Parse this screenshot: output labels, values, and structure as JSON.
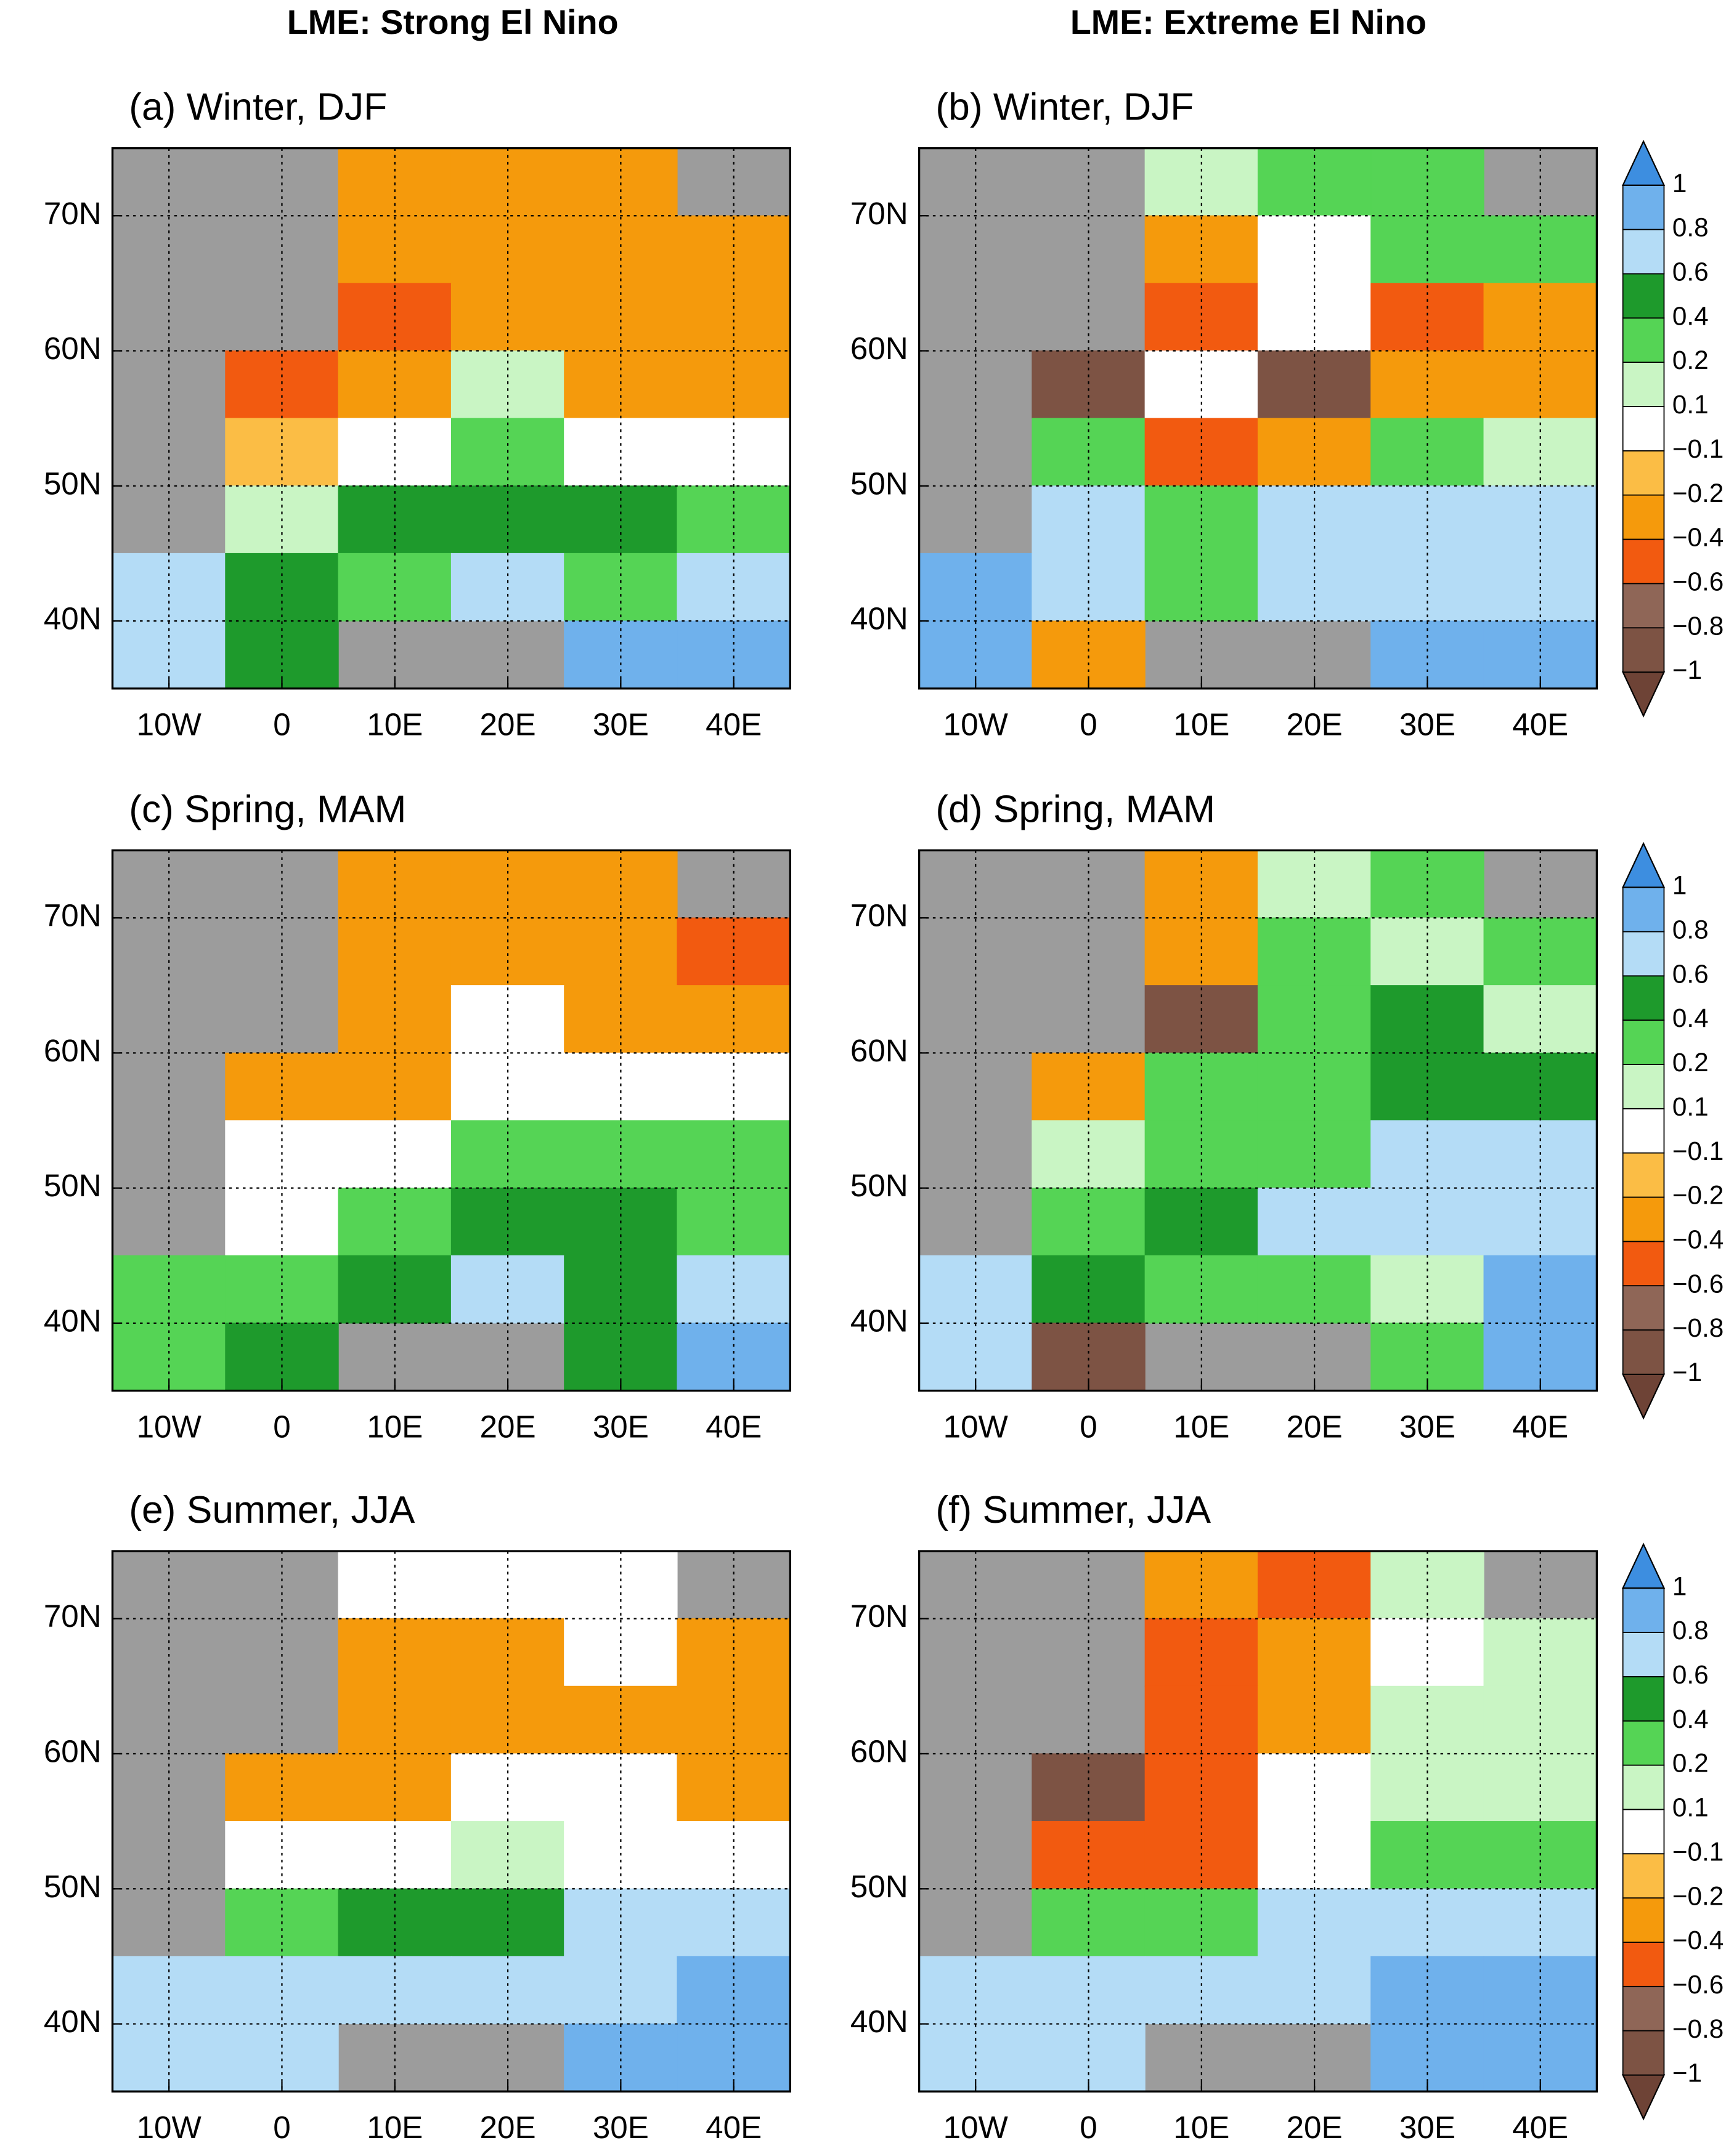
{
  "column_titles": [
    "LME: Strong El Nino",
    "LME: Extreme El Nino"
  ],
  "colorbar": {
    "ticks": [
      {
        "value": -1,
        "label": "−1"
      },
      {
        "value": -0.8,
        "label": "−0.8"
      },
      {
        "value": -0.6,
        "label": "−0.6"
      },
      {
        "value": -0.4,
        "label": "−0.4"
      },
      {
        "value": -0.2,
        "label": "−0.2"
      },
      {
        "value": -0.1,
        "label": "−0.1"
      },
      0.1,
      0.2,
      0.4,
      0.6,
      0.8,
      1
    ],
    "colors": [
      "#6e4336",
      "#7d5344",
      "#8f6657",
      "#f25a10",
      "#f59a0c",
      "#fbbd45",
      "#ffffff",
      "#c9f5c4",
      "#55d455",
      "#1e9a2c",
      "#b4dcf6",
      "#6fb1ec",
      "#3d8ee0"
    ]
  },
  "chart_data": [
    {
      "type": "map",
      "title": "(a) Winter, DJF",
      "colorbar": false,
      "grid": true,
      "xlim": [
        -15,
        45
      ],
      "ylim": [
        35,
        75
      ],
      "xticks": [
        {
          "value": -10,
          "label": "10W"
        },
        0,
        {
          "value": 10,
          "label": "10E"
        },
        {
          "value": 20,
          "label": "20E"
        },
        {
          "value": 30,
          "label": "30E"
        },
        {
          "value": 40,
          "label": "40E"
        }
      ],
      "yticks": [
        {
          "value": 40,
          "label": "40N"
        },
        {
          "value": 50,
          "label": "50N"
        },
        {
          "value": 60,
          "label": "60N"
        },
        {
          "value": 70,
          "label": "70N"
        }
      ],
      "lons": [
        -10,
        0,
        10,
        20,
        30,
        40
      ],
      "lats": [
        72.5,
        67.5,
        62.5,
        57.5,
        52.5,
        47.5,
        42.5,
        37.5
      ],
      "values": [
        [
          null,
          null,
          -0.3,
          -0.3,
          -0.3,
          null
        ],
        [
          null,
          null,
          -0.3,
          -0.3,
          -0.3,
          -0.3
        ],
        [
          null,
          null,
          -0.5,
          -0.3,
          -0.3,
          -0.3
        ],
        [
          null,
          -0.5,
          -0.3,
          0.15,
          -0.3,
          -0.3
        ],
        [
          null,
          -0.15,
          0,
          0.3,
          0,
          0
        ],
        [
          null,
          0.15,
          0.5,
          0.5,
          0.5,
          0.3
        ],
        [
          0.7,
          0.5,
          0.3,
          0.7,
          0.3,
          0.7
        ],
        [
          0.7,
          0.5,
          null,
          null,
          0.9,
          0.9
        ]
      ]
    },
    {
      "type": "map",
      "title": "(b) Winter, DJF",
      "colorbar": true,
      "grid": true,
      "xlim": [
        -15,
        45
      ],
      "ylim": [
        35,
        75
      ],
      "xticks": [
        {
          "value": -10,
          "label": "10W"
        },
        0,
        {
          "value": 10,
          "label": "10E"
        },
        {
          "value": 20,
          "label": "20E"
        },
        {
          "value": 30,
          "label": "30E"
        },
        {
          "value": 40,
          "label": "40E"
        }
      ],
      "yticks": [
        {
          "value": 40,
          "label": "40N"
        },
        {
          "value": 50,
          "label": "50N"
        },
        {
          "value": 60,
          "label": "60N"
        },
        {
          "value": 70,
          "label": "70N"
        }
      ],
      "lons": [
        -10,
        0,
        10,
        20,
        30,
        40
      ],
      "lats": [
        72.5,
        67.5,
        62.5,
        57.5,
        52.5,
        47.5,
        42.5,
        37.5
      ],
      "values": [
        [
          null,
          null,
          0.15,
          0.3,
          0.3,
          null
        ],
        [
          null,
          null,
          -0.3,
          0,
          0.3,
          0.3
        ],
        [
          null,
          null,
          -0.5,
          0,
          -0.5,
          -0.3
        ],
        [
          null,
          -0.9,
          0,
          -0.9,
          -0.3,
          -0.3
        ],
        [
          null,
          0.3,
          -0.5,
          -0.3,
          0.3,
          0.15
        ],
        [
          null,
          0.7,
          0.3,
          0.7,
          0.7,
          0.7
        ],
        [
          0.9,
          0.7,
          0.3,
          0.7,
          0.7,
          0.7
        ],
        [
          0.9,
          -0.3,
          null,
          null,
          0.9,
          0.9
        ]
      ]
    },
    {
      "type": "map",
      "title": "(c) Spring, MAM",
      "colorbar": false,
      "grid": true,
      "xlim": [
        -15,
        45
      ],
      "ylim": [
        35,
        75
      ],
      "xticks": [
        {
          "value": -10,
          "label": "10W"
        },
        0,
        {
          "value": 10,
          "label": "10E"
        },
        {
          "value": 20,
          "label": "20E"
        },
        {
          "value": 30,
          "label": "30E"
        },
        {
          "value": 40,
          "label": "40E"
        }
      ],
      "yticks": [
        {
          "value": 40,
          "label": "40N"
        },
        {
          "value": 50,
          "label": "50N"
        },
        {
          "value": 60,
          "label": "60N"
        },
        {
          "value": 70,
          "label": "70N"
        }
      ],
      "lons": [
        -10,
        0,
        10,
        20,
        30,
        40
      ],
      "lats": [
        72.5,
        67.5,
        62.5,
        57.5,
        52.5,
        47.5,
        42.5,
        37.5
      ],
      "values": [
        [
          null,
          null,
          -0.3,
          -0.3,
          -0.3,
          null
        ],
        [
          null,
          null,
          -0.3,
          -0.3,
          -0.3,
          -0.5
        ],
        [
          null,
          null,
          -0.3,
          0,
          -0.3,
          -0.3
        ],
        [
          null,
          -0.3,
          -0.3,
          0,
          0,
          0
        ],
        [
          null,
          0,
          0,
          0.3,
          0.3,
          0.3
        ],
        [
          null,
          0,
          0.3,
          0.5,
          0.5,
          0.3
        ],
        [
          0.3,
          0.3,
          0.5,
          0.7,
          0.5,
          0.7
        ],
        [
          0.3,
          0.5,
          null,
          null,
          0.5,
          0.9
        ]
      ]
    },
    {
      "type": "map",
      "title": "(d) Spring, MAM",
      "colorbar": true,
      "grid": true,
      "xlim": [
        -15,
        45
      ],
      "ylim": [
        35,
        75
      ],
      "xticks": [
        {
          "value": -10,
          "label": "10W"
        },
        0,
        {
          "value": 10,
          "label": "10E"
        },
        {
          "value": 20,
          "label": "20E"
        },
        {
          "value": 30,
          "label": "30E"
        },
        {
          "value": 40,
          "label": "40E"
        }
      ],
      "yticks": [
        {
          "value": 40,
          "label": "40N"
        },
        {
          "value": 50,
          "label": "50N"
        },
        {
          "value": 60,
          "label": "60N"
        },
        {
          "value": 70,
          "label": "70N"
        }
      ],
      "lons": [
        -10,
        0,
        10,
        20,
        30,
        40
      ],
      "lats": [
        72.5,
        67.5,
        62.5,
        57.5,
        52.5,
        47.5,
        42.5,
        37.5
      ],
      "values": [
        [
          null,
          null,
          -0.3,
          0.15,
          0.3,
          null
        ],
        [
          null,
          null,
          -0.3,
          0.3,
          0.15,
          0.3
        ],
        [
          null,
          null,
          -0.9,
          0.3,
          0.5,
          0.15
        ],
        [
          null,
          -0.3,
          0.3,
          0.3,
          0.5,
          0.5
        ],
        [
          null,
          0.15,
          0.3,
          0.3,
          0.7,
          0.7
        ],
        [
          null,
          0.3,
          0.5,
          0.7,
          0.7,
          0.7
        ],
        [
          0.7,
          0.5,
          0.3,
          0.3,
          0.15,
          0.9
        ],
        [
          0.7,
          -0.9,
          null,
          null,
          0.3,
          0.9
        ]
      ]
    },
    {
      "type": "map",
      "title": "(e) Summer, JJA",
      "colorbar": false,
      "grid": true,
      "xlim": [
        -15,
        45
      ],
      "ylim": [
        35,
        75
      ],
      "xticks": [
        {
          "value": -10,
          "label": "10W"
        },
        0,
        {
          "value": 10,
          "label": "10E"
        },
        {
          "value": 20,
          "label": "20E"
        },
        {
          "value": 30,
          "label": "30E"
        },
        {
          "value": 40,
          "label": "40E"
        }
      ],
      "yticks": [
        {
          "value": 40,
          "label": "40N"
        },
        {
          "value": 50,
          "label": "50N"
        },
        {
          "value": 60,
          "label": "60N"
        },
        {
          "value": 70,
          "label": "70N"
        }
      ],
      "lons": [
        -10,
        0,
        10,
        20,
        30,
        40
      ],
      "lats": [
        72.5,
        67.5,
        62.5,
        57.5,
        52.5,
        47.5,
        42.5,
        37.5
      ],
      "values": [
        [
          null,
          null,
          0,
          0,
          0,
          null
        ],
        [
          null,
          null,
          -0.3,
          -0.3,
          0,
          -0.3
        ],
        [
          null,
          null,
          -0.3,
          -0.3,
          -0.3,
          -0.3
        ],
        [
          null,
          -0.3,
          -0.3,
          0,
          0,
          -0.3
        ],
        [
          null,
          0,
          0,
          0.15,
          0,
          0
        ],
        [
          null,
          0.3,
          0.5,
          0.5,
          0.7,
          0.7
        ],
        [
          0.7,
          0.7,
          0.7,
          0.7,
          0.7,
          0.9
        ],
        [
          0.7,
          0.7,
          null,
          null,
          0.9,
          0.9
        ]
      ]
    },
    {
      "type": "map",
      "title": "(f) Summer, JJA",
      "colorbar": true,
      "grid": true,
      "xlim": [
        -15,
        45
      ],
      "ylim": [
        35,
        75
      ],
      "xticks": [
        {
          "value": -10,
          "label": "10W"
        },
        0,
        {
          "value": 10,
          "label": "10E"
        },
        {
          "value": 20,
          "label": "20E"
        },
        {
          "value": 30,
          "label": "30E"
        },
        {
          "value": 40,
          "label": "40E"
        }
      ],
      "yticks": [
        {
          "value": 40,
          "label": "40N"
        },
        {
          "value": 50,
          "label": "50N"
        },
        {
          "value": 60,
          "label": "60N"
        },
        {
          "value": 70,
          "label": "70N"
        }
      ],
      "lons": [
        -10,
        0,
        10,
        20,
        30,
        40
      ],
      "lats": [
        72.5,
        67.5,
        62.5,
        57.5,
        52.5,
        47.5,
        42.5,
        37.5
      ],
      "values": [
        [
          null,
          null,
          -0.3,
          -0.5,
          0.15,
          null
        ],
        [
          null,
          null,
          -0.5,
          -0.3,
          0,
          0.15
        ],
        [
          null,
          null,
          -0.5,
          -0.3,
          0.15,
          0.15
        ],
        [
          null,
          -0.9,
          -0.5,
          0,
          0.15,
          0.15
        ],
        [
          null,
          -0.5,
          -0.5,
          0,
          0.3,
          0.3
        ],
        [
          null,
          0.3,
          0.3,
          0.7,
          0.7,
          0.7
        ],
        [
          0.7,
          0.7,
          0.7,
          0.7,
          0.9,
          0.9
        ],
        [
          0.7,
          0.7,
          null,
          null,
          0.9,
          0.9
        ]
      ]
    }
  ]
}
